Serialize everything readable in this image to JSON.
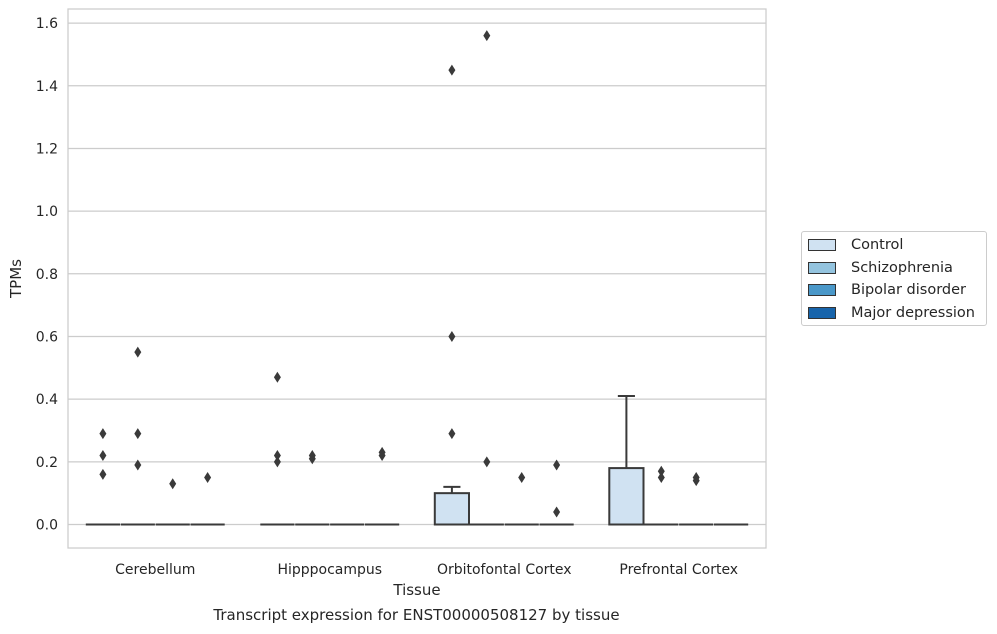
{
  "caption": "Transcript expression for ENST00000508127 by tissue",
  "chart_data": {
    "type": "box",
    "xlabel": "Tissue",
    "ylabel": "TPMs",
    "ylim": [
      -0.075,
      1.645
    ],
    "yticks": [
      "0.0",
      "0.2",
      "0.4",
      "0.6",
      "0.8",
      "1.0",
      "1.2",
      "1.4",
      "1.6"
    ],
    "categories": [
      "Cerebellum",
      "Hipppocampus",
      "Orbitofontal Cortex",
      "Prefrontal Cortex"
    ],
    "grid": "horizontal",
    "legend_position": "right",
    "series": [
      {
        "name": "Control",
        "color": "#d0e2f2",
        "boxes": [
          {
            "q1": 0,
            "median": 0,
            "q3": 0,
            "whisker_low": 0,
            "whisker_high": 0,
            "outliers": [
              0.16,
              0.22,
              0.29
            ]
          },
          {
            "q1": 0,
            "median": 0,
            "q3": 0,
            "whisker_low": 0,
            "whisker_high": 0,
            "outliers": [
              0.2,
              0.22,
              0.47
            ]
          },
          {
            "q1": 0,
            "median": 0,
            "q3": 0.1,
            "whisker_low": 0,
            "whisker_high": 0.12,
            "outliers": [
              0.29,
              0.6,
              1.45
            ]
          },
          {
            "q1": 0,
            "median": 0,
            "q3": 0.18,
            "whisker_low": 0,
            "whisker_high": 0.41,
            "outliers": []
          }
        ]
      },
      {
        "name": "Schizophrenia",
        "color": "#94c4df",
        "boxes": [
          {
            "q1": 0,
            "median": 0,
            "q3": 0,
            "whisker_low": 0,
            "whisker_high": 0,
            "outliers": [
              0.19,
              0.29,
              0.55
            ]
          },
          {
            "q1": 0,
            "median": 0,
            "q3": 0,
            "whisker_low": 0,
            "whisker_high": 0,
            "outliers": [
              0.21,
              0.22
            ]
          },
          {
            "q1": 0,
            "median": 0,
            "q3": 0,
            "whisker_low": 0,
            "whisker_high": 0,
            "outliers": [
              0.2,
              1.56
            ]
          },
          {
            "q1": 0,
            "median": 0,
            "q3": 0,
            "whisker_low": 0,
            "whisker_high": 0,
            "outliers": [
              0.15,
              0.17
            ]
          }
        ]
      },
      {
        "name": "Bipolar disorder",
        "color": "#4a98c9",
        "boxes": [
          {
            "q1": 0,
            "median": 0,
            "q3": 0,
            "whisker_low": 0,
            "whisker_high": 0,
            "outliers": [
              0.13
            ]
          },
          {
            "q1": 0,
            "median": 0,
            "q3": 0,
            "whisker_low": 0,
            "whisker_high": 0,
            "outliers": []
          },
          {
            "q1": 0,
            "median": 0,
            "q3": 0,
            "whisker_low": 0,
            "whisker_high": 0,
            "outliers": [
              0.15
            ]
          },
          {
            "q1": 0,
            "median": 0,
            "q3": 0,
            "whisker_low": 0,
            "whisker_high": 0,
            "outliers": [
              0.14,
              0.15
            ]
          }
        ]
      },
      {
        "name": "Major depression",
        "color": "#1764ab",
        "boxes": [
          {
            "q1": 0,
            "median": 0,
            "q3": 0,
            "whisker_low": 0,
            "whisker_high": 0,
            "outliers": [
              0.15
            ]
          },
          {
            "q1": 0,
            "median": 0,
            "q3": 0,
            "whisker_low": 0,
            "whisker_high": 0,
            "outliers": [
              0.22,
              0.23
            ]
          },
          {
            "q1": 0,
            "median": 0,
            "q3": 0,
            "whisker_low": 0,
            "whisker_high": 0,
            "outliers": [
              0.04,
              0.19
            ]
          },
          {
            "q1": 0,
            "median": 0,
            "q3": 0,
            "whisker_low": 0,
            "whisker_high": 0,
            "outliers": []
          }
        ]
      }
    ]
  }
}
